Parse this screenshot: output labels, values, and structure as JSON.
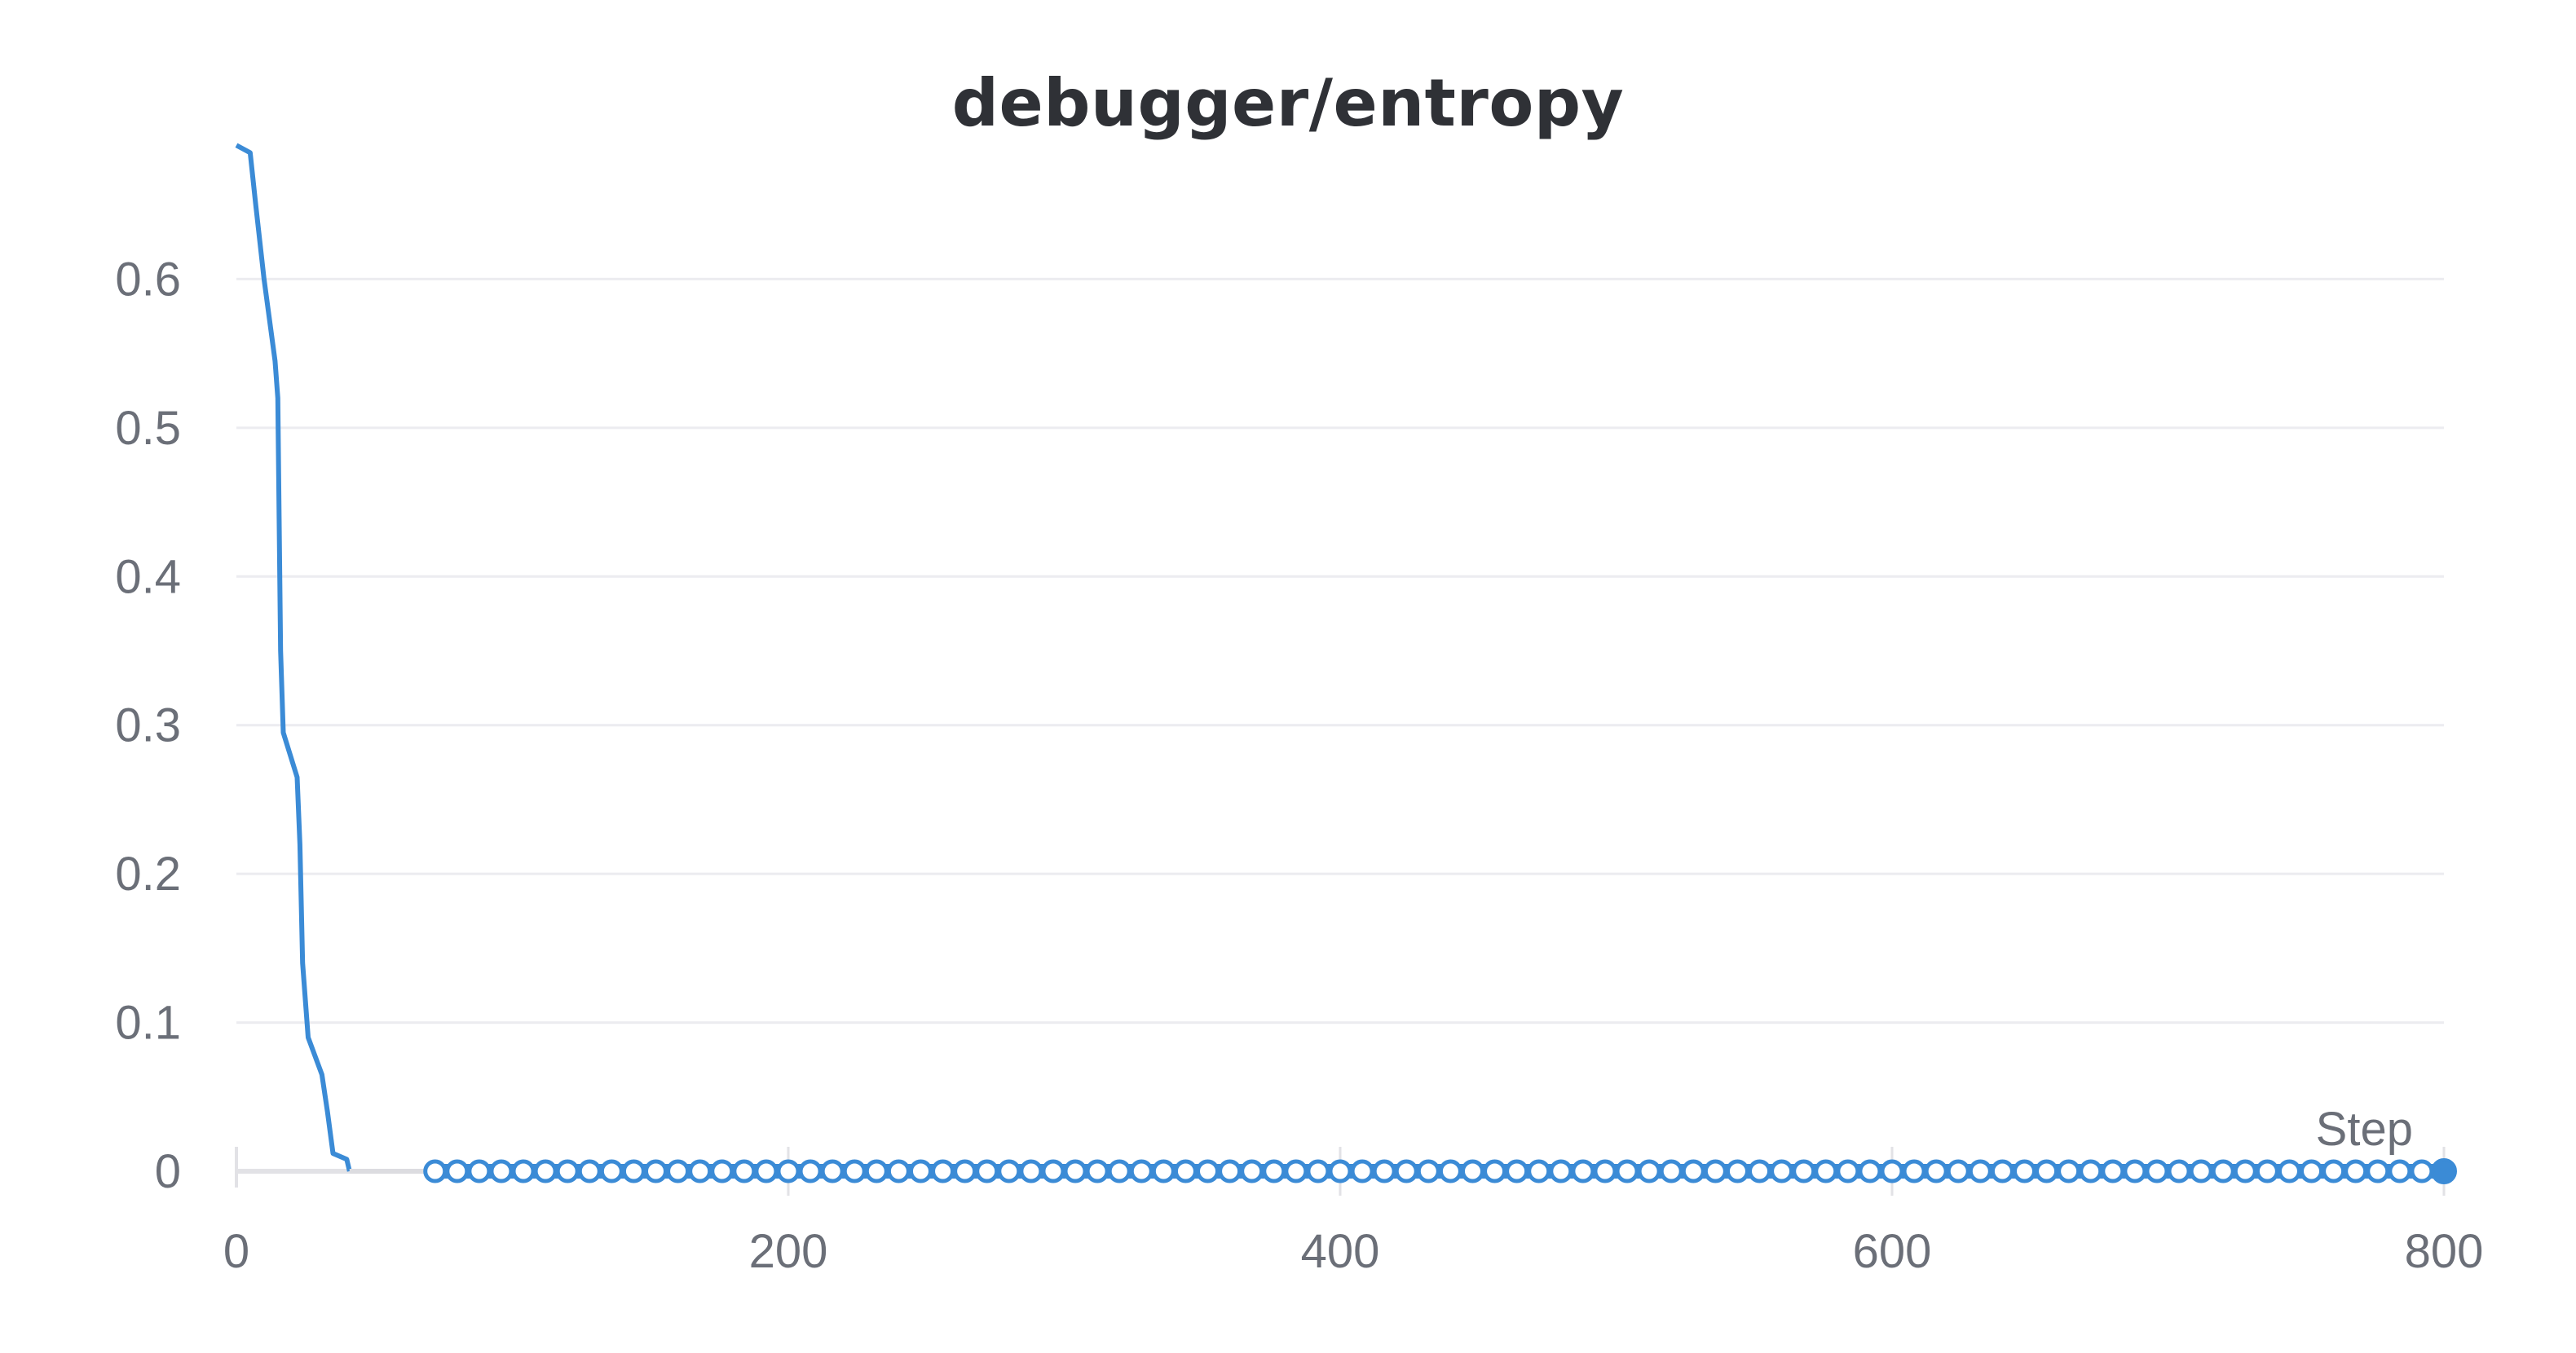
{
  "chart_data": {
    "type": "line",
    "title": "debugger/entropy",
    "xlabel": "Step",
    "ylabel": "",
    "xlim": [
      0,
      800
    ],
    "ylim": [
      0,
      0.7
    ],
    "x_ticks": [
      0,
      200,
      400,
      600,
      800
    ],
    "y_ticks": [
      0,
      0.1,
      0.2,
      0.3,
      0.4,
      0.5,
      0.6
    ],
    "y_tick_labels": [
      "0",
      "0.1",
      "0.2",
      "0.3",
      "0.4",
      "0.5",
      "0.6"
    ],
    "grid": "horizontal",
    "colors": {
      "series": "#3b8bd6",
      "grid": "#ececf0",
      "axis": "#e2e2e6",
      "text": "#6b6f78",
      "title": "#2f3136"
    },
    "series": [
      {
        "line_points": [
          [
            0,
            0.69
          ],
          [
            5,
            0.685
          ],
          [
            7,
            0.65
          ],
          [
            10,
            0.6
          ],
          [
            14,
            0.545
          ],
          [
            15,
            0.52
          ],
          [
            16,
            0.35
          ],
          [
            17,
            0.295
          ],
          [
            22,
            0.265
          ],
          [
            23,
            0.22
          ],
          [
            24,
            0.14
          ],
          [
            26,
            0.09
          ],
          [
            31,
            0.065
          ],
          [
            33,
            0.04
          ],
          [
            35,
            0.012
          ],
          [
            40,
            0.008
          ],
          [
            41,
            0.0
          ]
        ],
        "flat_segment": {
          "x_start": 41,
          "x_end": 72,
          "y": 0.0
        },
        "markers": {
          "x_start": 72,
          "x_end": 800,
          "step": 8,
          "y": 0.0
        }
      }
    ]
  }
}
